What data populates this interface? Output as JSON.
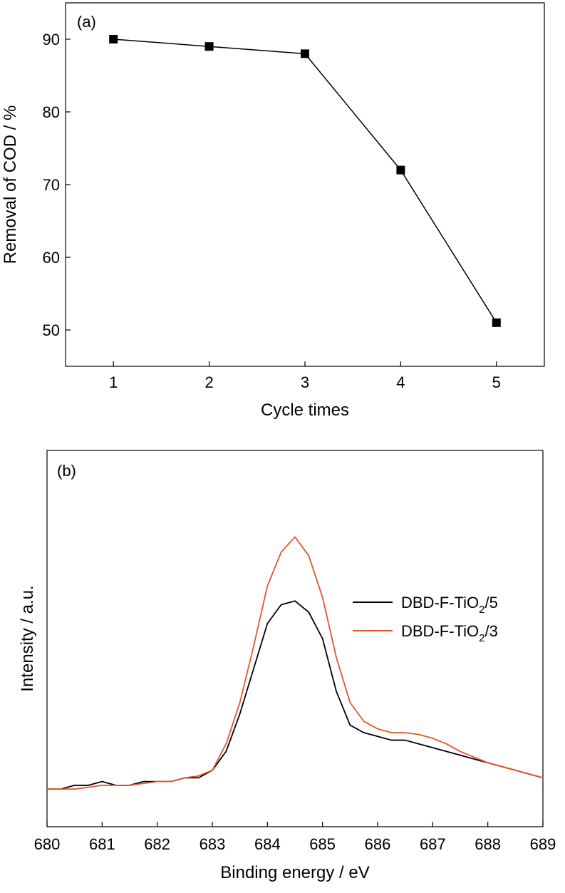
{
  "chart_data": [
    {
      "type": "line",
      "panel_label": "(a)",
      "xlabel": "Cycle times",
      "ylabel": "Removal of COD / %",
      "xlim": [
        0.5,
        5.5
      ],
      "ylim": [
        45,
        95
      ],
      "xticks": [
        1,
        2,
        3,
        4,
        5
      ],
      "yticks": [
        50,
        60,
        70,
        80,
        90
      ],
      "grid": false,
      "marker": "square",
      "series": [
        {
          "x": [
            1,
            2,
            3,
            4,
            5
          ],
          "y": [
            90,
            89,
            88,
            72,
            51
          ],
          "color": "#000000"
        }
      ]
    },
    {
      "type": "line",
      "panel_label": "(b)",
      "xlabel": "Binding energy / eV",
      "ylabel": "Intensity / a.u.",
      "xlim": [
        680,
        689
      ],
      "ylim": [
        0,
        100
      ],
      "xticks": [
        680,
        681,
        682,
        683,
        684,
        685,
        686,
        687,
        688,
        689
      ],
      "y_tick_labels_shown": false,
      "grid": false,
      "legend_position": "right",
      "series": [
        {
          "name": "DBD-F-TiO2/5",
          "legend_main": "DBD-F-TiO",
          "legend_sub": "2",
          "legend_suffix": "/5",
          "color": "#000000",
          "x": [
            680.0,
            680.25,
            680.5,
            680.75,
            681.0,
            681.25,
            681.5,
            681.75,
            682.0,
            682.25,
            682.5,
            682.75,
            683.0,
            683.25,
            683.5,
            683.75,
            684.0,
            684.25,
            684.5,
            684.75,
            685.0,
            685.25,
            685.5,
            685.75,
            686.0,
            686.25,
            686.5,
            686.75,
            687.0,
            687.25,
            687.5,
            687.75,
            688.0,
            688.25,
            688.5,
            688.75,
            689.0
          ],
          "y": [
            10,
            10,
            11,
            11,
            12,
            11,
            11,
            12,
            12,
            12,
            13,
            13,
            15,
            20,
            30,
            42,
            54,
            59,
            60,
            57,
            50,
            36,
            27,
            25,
            24,
            23,
            23,
            22,
            21,
            20,
            19,
            18,
            17,
            16,
            15,
            14,
            13
          ]
        },
        {
          "name": "DBD-F-TiO2/3",
          "legend_main": "DBD-F-TiO",
          "legend_sub": "2",
          "legend_suffix": "/3",
          "color": "#e2562c",
          "x": [
            680.0,
            680.25,
            680.5,
            680.75,
            681.0,
            681.25,
            681.5,
            681.75,
            682.0,
            682.25,
            682.5,
            682.75,
            683.0,
            683.25,
            683.5,
            683.75,
            684.0,
            684.25,
            684.5,
            684.75,
            685.0,
            685.25,
            685.5,
            685.75,
            686.0,
            686.25,
            686.5,
            686.75,
            687.0,
            687.25,
            687.5,
            687.75,
            688.0,
            688.25,
            688.5,
            688.75,
            689.0
          ],
          "y": [
            10,
            10,
            10,
            10.5,
            11,
            11,
            11,
            11.5,
            12,
            12,
            13,
            13.5,
            15,
            22,
            33,
            48,
            64,
            73,
            77,
            72,
            61,
            45,
            33,
            28,
            26,
            25,
            25,
            24.5,
            23.5,
            22,
            20,
            18.5,
            17,
            16,
            15,
            14,
            13
          ]
        }
      ]
    }
  ]
}
